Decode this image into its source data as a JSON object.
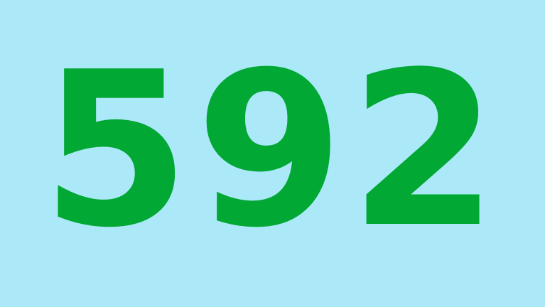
{
  "display": {
    "number": "592"
  },
  "colors": {
    "background": "#abe8f8",
    "digits": "#02a834"
  }
}
